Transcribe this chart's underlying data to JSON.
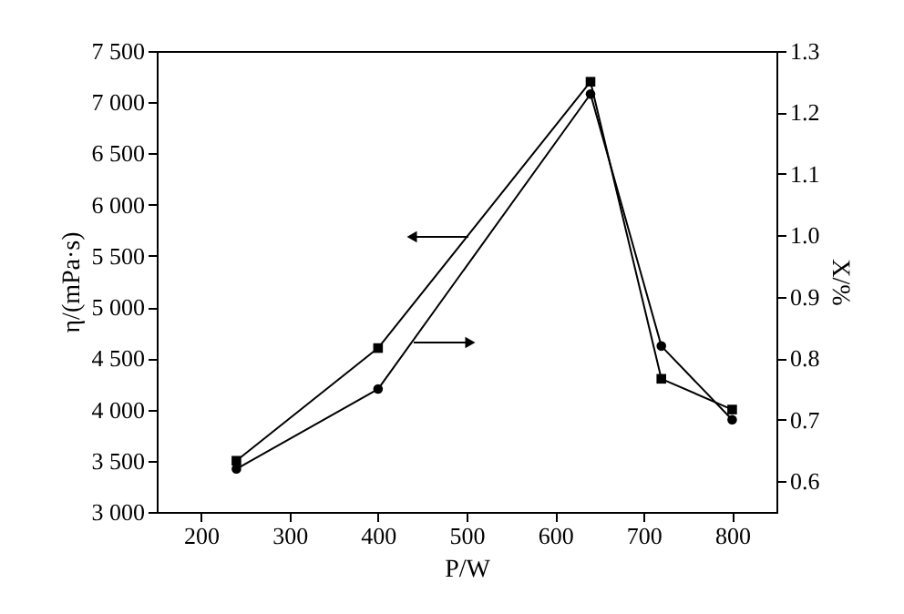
{
  "chart_data": {
    "type": "line",
    "xlabel": "P/W",
    "ylabel": "η/(mPa·s)",
    "y2label": "X/%",
    "x": [
      240,
      400,
      640,
      720,
      800
    ],
    "xlim": [
      150,
      850
    ],
    "xticks": [
      200,
      300,
      400,
      500,
      600,
      700,
      800
    ],
    "ylim": [
      3000,
      7500
    ],
    "yticks": [
      {
        "value": 3000,
        "label": "3 000"
      },
      {
        "value": 3500,
        "label": "3 500"
      },
      {
        "value": 4000,
        "label": "4 000"
      },
      {
        "value": 4500,
        "label": "4 500"
      },
      {
        "value": 5000,
        "label": "5 000"
      },
      {
        "value": 5500,
        "label": "5 500"
      },
      {
        "value": 6000,
        "label": "6 000"
      },
      {
        "value": 6500,
        "label": "6 500"
      },
      {
        "value": 7000,
        "label": "7 000"
      },
      {
        "value": 7500,
        "label": "7 500"
      }
    ],
    "y2lim": [
      0.55,
      1.3
    ],
    "y2ticks": [
      {
        "value": 0.6,
        "label": "0.6"
      },
      {
        "value": 0.7,
        "label": "0.7"
      },
      {
        "value": 0.8,
        "label": "0.8"
      },
      {
        "value": 0.9,
        "label": "0.9"
      },
      {
        "value": 1.0,
        "label": "1.0"
      },
      {
        "value": 1.1,
        "label": "1.1"
      },
      {
        "value": 1.2,
        "label": "1.2"
      },
      {
        "value": 1.3,
        "label": "1.3"
      }
    ],
    "grid": false,
    "line_style": "solid",
    "series": [
      {
        "color": "#000000",
        "marker": "square",
        "values": [
          3500,
          4600,
          7200,
          4300,
          4000
        ]
      },
      {
        "color": "#000000",
        "marker": "circle",
        "axis": "y2",
        "values": [
          0.62,
          0.75,
          1.23,
          0.82,
          0.7
        ]
      }
    ]
  }
}
